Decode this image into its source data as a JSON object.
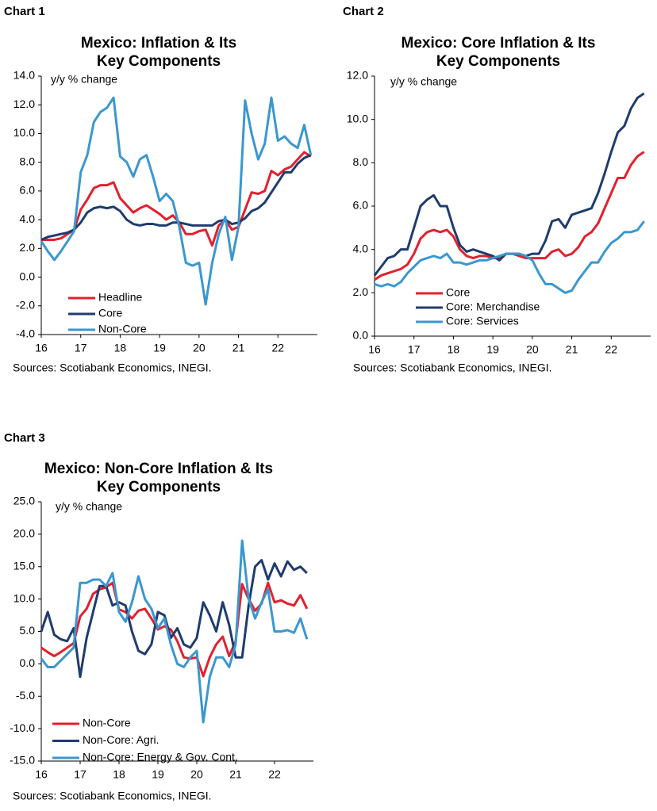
{
  "chart_data": [
    {
      "type": "line",
      "label": "Chart 1",
      "title": [
        "Mexico: Inflation & Its",
        "Key Components"
      ],
      "annotation": "y/y % change",
      "source": "Sources: Scotiabank Economics, INEGI.",
      "legend": "lower left",
      "categories": [
        "16",
        null,
        null,
        null,
        null,
        null,
        "17",
        null,
        null,
        null,
        null,
        null,
        "18",
        null,
        null,
        null,
        null,
        null,
        "19",
        null,
        null,
        null,
        null,
        null,
        "20",
        null,
        null,
        null,
        null,
        null,
        "21",
        null,
        null,
        null,
        null,
        null,
        "22",
        null,
        null,
        null,
        null,
        null
      ],
      "ylim": [
        -4,
        14
      ],
      "yticks": [
        {
          "value": -4,
          "label": "-4.0"
        },
        {
          "value": -2,
          "label": "-2.0"
        },
        {
          "value": 0,
          "label": "0.0"
        },
        {
          "value": 2,
          "label": "2.0"
        },
        {
          "value": 4,
          "label": "4.0"
        },
        {
          "value": 6,
          "label": "6.0"
        },
        {
          "value": 8,
          "label": "8.0"
        },
        {
          "value": 10,
          "label": "10.0"
        },
        {
          "value": 12,
          "label": "12.0"
        },
        {
          "value": 14,
          "label": "14.0"
        }
      ],
      "series": [
        {
          "name": "Headline",
          "color": "#e3202e",
          "values": [
            2.6,
            2.6,
            2.6,
            2.7,
            3.0,
            3.3,
            4.7,
            5.4,
            6.2,
            6.4,
            6.4,
            6.6,
            5.5,
            5.0,
            4.5,
            4.8,
            5.0,
            4.7,
            4.4,
            4.0,
            4.3,
            3.8,
            3.0,
            3.0,
            3.2,
            3.3,
            2.2,
            3.6,
            4.0,
            3.3,
            3.5,
            4.7,
            5.9,
            5.8,
            6.0,
            7.4,
            7.1,
            7.5,
            7.7,
            8.2,
            8.7,
            8.4
          ]
        },
        {
          "name": "Core",
          "color": "#1f3c6e",
          "values": [
            2.6,
            2.8,
            2.9,
            3.0,
            3.1,
            3.3,
            3.8,
            4.5,
            4.8,
            4.9,
            4.8,
            4.9,
            4.6,
            4.0,
            3.7,
            3.6,
            3.7,
            3.7,
            3.6,
            3.6,
            3.8,
            3.8,
            3.7,
            3.6,
            3.6,
            3.6,
            3.6,
            3.9,
            4.0,
            3.7,
            3.8,
            4.1,
            4.6,
            4.8,
            5.2,
            5.9,
            6.6,
            7.3,
            7.3,
            7.9,
            8.3,
            8.5
          ]
        },
        {
          "name": "Non-Core",
          "color": "#3a97cf",
          "values": [
            2.5,
            1.8,
            1.2,
            1.8,
            2.5,
            3.2,
            7.3,
            8.5,
            10.8,
            11.5,
            11.8,
            12.5,
            8.4,
            8.0,
            7.0,
            8.2,
            8.5,
            7.0,
            5.3,
            5.8,
            5.3,
            3.5,
            1.0,
            0.8,
            1.0,
            -1.9,
            1.0,
            3.0,
            4.2,
            1.2,
            3.5,
            12.3,
            10.0,
            8.2,
            9.3,
            12.5,
            9.5,
            9.8,
            9.3,
            9.0,
            10.6,
            8.5
          ]
        }
      ]
    },
    {
      "type": "line",
      "label": "Chart 2",
      "title": [
        "Mexico: Core Inflation & Its",
        "Key Components"
      ],
      "annotation": "y/y % change",
      "source": "Sources: Scotiabank Economics, INEGI.",
      "legend": "lower left",
      "categories": [
        "16",
        null,
        null,
        null,
        null,
        null,
        "17",
        null,
        null,
        null,
        null,
        null,
        "18",
        null,
        null,
        null,
        null,
        null,
        "19",
        null,
        null,
        null,
        null,
        null,
        "20",
        null,
        null,
        null,
        null,
        null,
        "21",
        null,
        null,
        null,
        null,
        null,
        "22",
        null,
        null,
        null,
        null,
        null
      ],
      "ylim": [
        0,
        12
      ],
      "yticks": [
        {
          "value": 0,
          "label": "0.0"
        },
        {
          "value": 2,
          "label": "2.0"
        },
        {
          "value": 4,
          "label": "4.0"
        },
        {
          "value": 6,
          "label": "6.0"
        },
        {
          "value": 8,
          "label": "8.0"
        },
        {
          "value": 10,
          "label": "10.0"
        },
        {
          "value": 12,
          "label": "12.0"
        }
      ],
      "series": [
        {
          "name": "Core",
          "color": "#e3202e",
          "values": [
            2.6,
            2.8,
            2.9,
            3.0,
            3.1,
            3.3,
            3.8,
            4.5,
            4.8,
            4.9,
            4.8,
            4.9,
            4.6,
            4.0,
            3.7,
            3.6,
            3.7,
            3.7,
            3.6,
            3.6,
            3.8,
            3.8,
            3.7,
            3.6,
            3.6,
            3.6,
            3.6,
            3.9,
            4.0,
            3.7,
            3.8,
            4.1,
            4.6,
            4.8,
            5.2,
            5.9,
            6.6,
            7.3,
            7.3,
            7.9,
            8.3,
            8.5
          ]
        },
        {
          "name": "Core: Merchandise",
          "color": "#1f3c6e",
          "values": [
            2.8,
            3.2,
            3.6,
            3.7,
            4.0,
            4.0,
            5.0,
            6.0,
            6.3,
            6.5,
            6.0,
            6.0,
            5.0,
            4.2,
            3.9,
            4.0,
            3.9,
            3.8,
            3.7,
            3.5,
            3.8,
            3.8,
            3.8,
            3.7,
            3.8,
            3.8,
            4.4,
            5.3,
            5.4,
            5.0,
            5.6,
            5.7,
            5.8,
            5.9,
            6.6,
            7.5,
            8.5,
            9.4,
            9.7,
            10.5,
            11.0,
            11.2
          ]
        },
        {
          "name": "Core: Services",
          "color": "#3a97cf",
          "values": [
            2.4,
            2.3,
            2.4,
            2.3,
            2.5,
            2.9,
            3.2,
            3.5,
            3.6,
            3.7,
            3.6,
            3.8,
            3.4,
            3.4,
            3.3,
            3.4,
            3.5,
            3.5,
            3.6,
            3.7,
            3.8,
            3.8,
            3.8,
            3.7,
            3.5,
            2.9,
            2.4,
            2.4,
            2.2,
            2.0,
            2.1,
            2.6,
            3.0,
            3.4,
            3.4,
            3.9,
            4.3,
            4.5,
            4.8,
            4.8,
            4.9,
            5.3
          ]
        }
      ]
    },
    {
      "type": "line",
      "label": "Chart 3",
      "title": [
        "Mexico: Non-Core Inflation & Its",
        "Key Components"
      ],
      "annotation": "y/y % change",
      "source": "Sources: Scotiabank Economics, INEGI.",
      "legend": "lower left",
      "categories": [
        "16",
        null,
        null,
        null,
        null,
        null,
        "17",
        null,
        null,
        null,
        null,
        null,
        "18",
        null,
        null,
        null,
        null,
        null,
        "19",
        null,
        null,
        null,
        null,
        null,
        "20",
        null,
        null,
        null,
        null,
        null,
        "21",
        null,
        null,
        null,
        null,
        null,
        "22",
        null,
        null,
        null,
        null,
        null
      ],
      "ylim": [
        -15,
        25
      ],
      "yticks": [
        {
          "value": -15,
          "label": "-15.0"
        },
        {
          "value": -10,
          "label": "-10.0"
        },
        {
          "value": -5,
          "label": "-5.0"
        },
        {
          "value": 0,
          "label": "0.0"
        },
        {
          "value": 5,
          "label": "5.0"
        },
        {
          "value": 10,
          "label": "10.0"
        },
        {
          "value": 15,
          "label": "15.0"
        },
        {
          "value": 20,
          "label": "20.0"
        },
        {
          "value": 25,
          "label": "25.0"
        }
      ],
      "series": [
        {
          "name": "Non-Core",
          "color": "#e3202e",
          "values": [
            2.5,
            1.8,
            1.2,
            1.8,
            2.5,
            3.2,
            7.3,
            8.5,
            10.8,
            11.5,
            11.8,
            12.5,
            8.4,
            8.0,
            7.0,
            8.2,
            8.5,
            7.0,
            5.3,
            5.8,
            5.3,
            3.5,
            1.0,
            0.8,
            1.0,
            -1.9,
            1.0,
            3.0,
            4.2,
            1.2,
            3.5,
            12.3,
            10.0,
            8.2,
            9.3,
            12.5,
            9.5,
            9.8,
            9.3,
            9.0,
            10.6,
            8.5
          ]
        },
        {
          "name": "Non-Core: Agri.",
          "color": "#1f3c6e",
          "values": [
            5.0,
            8.0,
            4.5,
            3.8,
            3.5,
            5.5,
            -2.0,
            4.0,
            8.0,
            12.0,
            12.0,
            9.0,
            9.5,
            9.0,
            5.0,
            2.0,
            1.5,
            3.0,
            8.0,
            7.5,
            4.0,
            5.5,
            3.0,
            2.5,
            4.0,
            9.5,
            7.5,
            5.0,
            9.5,
            6.0,
            1.0,
            1.0,
            9.0,
            15.0,
            16.0,
            13.0,
            15.5,
            13.5,
            15.8,
            14.5,
            15.0,
            14.0
          ]
        },
        {
          "name": "Non-Core: Energy & Gov. Cont.",
          "color": "#3a97cf",
          "values": [
            0.8,
            -0.5,
            -0.5,
            0.5,
            1.5,
            2.5,
            12.5,
            12.5,
            13.0,
            13.0,
            12.0,
            14.0,
            8.0,
            6.5,
            9.5,
            13.5,
            10.0,
            8.5,
            5.5,
            7.0,
            3.0,
            0.0,
            -0.5,
            1.0,
            2.0,
            -9.0,
            -2.0,
            1.0,
            1.0,
            -0.5,
            3.0,
            19.0,
            10.0,
            7.0,
            9.5,
            11.5,
            5.0,
            5.0,
            5.2,
            4.8,
            7.0,
            3.8
          ]
        }
      ]
    }
  ]
}
